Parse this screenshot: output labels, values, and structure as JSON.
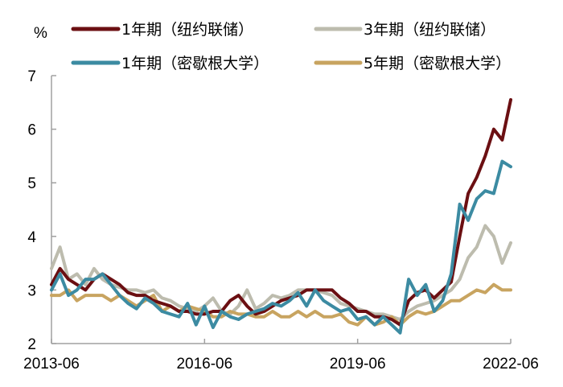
{
  "chart_data": {
    "type": "line",
    "title": "",
    "unit_label": "%",
    "xlabel": "",
    "ylabel": "%",
    "ylim": [
      2,
      7
    ],
    "yticks": [
      2,
      3,
      4,
      5,
      6,
      7
    ],
    "xtick_labels": [
      "2013-06",
      "2016-06",
      "2019-06",
      "2022-06"
    ],
    "x_range": [
      "2013-06",
      "2022-06"
    ],
    "grid": false,
    "legend_position": "top",
    "x": [
      "2013-06",
      "2013-08",
      "2013-10",
      "2013-12",
      "2014-02",
      "2014-04",
      "2014-06",
      "2014-08",
      "2014-10",
      "2014-12",
      "2015-02",
      "2015-04",
      "2015-06",
      "2015-08",
      "2015-10",
      "2015-12",
      "2016-02",
      "2016-04",
      "2016-06",
      "2016-08",
      "2016-10",
      "2016-12",
      "2017-02",
      "2017-04",
      "2017-06",
      "2017-08",
      "2017-10",
      "2017-12",
      "2018-02",
      "2018-04",
      "2018-06",
      "2018-08",
      "2018-10",
      "2018-12",
      "2019-02",
      "2019-04",
      "2019-06",
      "2019-08",
      "2019-10",
      "2019-12",
      "2020-02",
      "2020-04",
      "2020-06",
      "2020-08",
      "2020-10",
      "2020-12",
      "2021-02",
      "2021-04",
      "2021-06",
      "2021-08",
      "2021-10",
      "2021-12",
      "2022-02",
      "2022-04",
      "2022-06"
    ],
    "series": [
      {
        "name": "1年期（纽约联储）",
        "color": "#6B0F12",
        "values": [
          3.1,
          3.4,
          3.2,
          3.1,
          3.0,
          3.2,
          3.3,
          3.2,
          3.1,
          2.95,
          2.9,
          2.9,
          2.8,
          2.75,
          2.7,
          2.6,
          2.6,
          2.55,
          2.55,
          2.6,
          2.6,
          2.8,
          2.9,
          2.7,
          2.55,
          2.6,
          2.7,
          2.8,
          2.85,
          2.9,
          3.0,
          3.0,
          3.0,
          3.0,
          2.85,
          2.75,
          2.6,
          2.6,
          2.5,
          2.5,
          2.45,
          2.35,
          2.8,
          2.95,
          3.0,
          2.85,
          3.0,
          3.15,
          4.0,
          4.8,
          5.1,
          5.5,
          6.0,
          5.8,
          6.55
        ]
      },
      {
        "name": "3年期（纽约联储）",
        "color": "#BDBCAE",
        "values": [
          3.4,
          3.8,
          3.2,
          3.3,
          3.1,
          3.4,
          3.2,
          3.1,
          3.05,
          3.0,
          3.0,
          2.95,
          3.0,
          2.85,
          2.8,
          2.7,
          2.65,
          2.6,
          2.7,
          2.85,
          2.6,
          2.55,
          2.7,
          3.0,
          2.65,
          2.75,
          2.9,
          2.85,
          2.9,
          3.0,
          3.0,
          3.0,
          2.95,
          2.9,
          2.75,
          2.7,
          2.65,
          2.6,
          2.55,
          2.55,
          2.5,
          2.45,
          2.6,
          2.7,
          2.75,
          2.8,
          2.9,
          3.0,
          3.2,
          3.6,
          3.8,
          4.2,
          4.0,
          3.5,
          3.88
        ]
      },
      {
        "name": "1年期（密歇根大学）",
        "color": "#3C8BA2",
        "values": [
          3.0,
          3.3,
          2.9,
          3.0,
          3.2,
          3.2,
          3.3,
          3.1,
          2.9,
          2.75,
          2.65,
          2.85,
          2.75,
          2.6,
          2.55,
          2.5,
          2.75,
          2.35,
          2.7,
          2.3,
          2.6,
          2.5,
          2.45,
          2.55,
          2.6,
          2.65,
          2.75,
          2.7,
          2.8,
          2.95,
          2.7,
          3.0,
          2.8,
          2.7,
          2.6,
          2.65,
          2.45,
          2.5,
          2.35,
          2.5,
          2.35,
          2.2,
          3.2,
          2.9,
          3.1,
          2.6,
          2.8,
          3.3,
          4.6,
          4.3,
          4.7,
          4.85,
          4.8,
          5.4,
          5.3
        ]
      },
      {
        "name": "5年期（密歇根大学）",
        "color": "#C8A460",
        "values": [
          2.9,
          2.9,
          3.0,
          2.8,
          2.9,
          2.9,
          2.9,
          2.8,
          2.9,
          2.8,
          2.7,
          2.8,
          2.9,
          2.6,
          2.7,
          2.6,
          2.7,
          2.65,
          2.6,
          2.5,
          2.5,
          2.6,
          2.55,
          2.55,
          2.5,
          2.5,
          2.6,
          2.5,
          2.5,
          2.6,
          2.5,
          2.6,
          2.5,
          2.5,
          2.55,
          2.4,
          2.35,
          2.5,
          2.35,
          2.4,
          2.5,
          2.35,
          2.5,
          2.6,
          2.55,
          2.6,
          2.7,
          2.8,
          2.8,
          2.9,
          3.0,
          2.95,
          3.1,
          3.0,
          3.0
        ]
      }
    ]
  },
  "legend": {
    "items": [
      {
        "label": "1年期（纽约联储）",
        "color": "#6B0F12"
      },
      {
        "label": "3年期（纽约联储）",
        "color": "#BDBCAE"
      },
      {
        "label": "1年期（密歇根大学）",
        "color": "#3C8BA2"
      },
      {
        "label": "5年期（密歇根大学）",
        "color": "#C8A460"
      }
    ]
  },
  "axes": {
    "unit": "%",
    "y_ticks": [
      "7",
      "6",
      "5",
      "4",
      "3",
      "2"
    ],
    "x_ticks": [
      "2013-06",
      "2016-06",
      "2019-06",
      "2022-06"
    ],
    "axis_color": "#A0A0A0"
  }
}
